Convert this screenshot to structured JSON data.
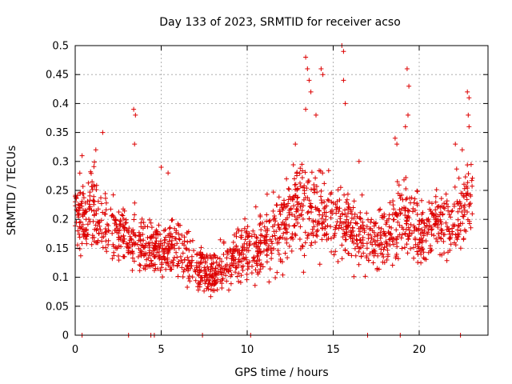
{
  "chart_data": {
    "type": "scatter",
    "title": "Day 133 of 2023, SRMTID for receiver acso",
    "xlabel": "GPS time / hours",
    "ylabel": "SRMTID / TECUs",
    "xlim": [
      0,
      24
    ],
    "ylim": [
      0,
      0.5
    ],
    "x_ticks": [
      0,
      5,
      10,
      15,
      20
    ],
    "x_tick_labels": [
      "0",
      "5",
      "10",
      "15",
      "20"
    ],
    "y_ticks": [
      0,
      0.05,
      0.1,
      0.15,
      0.2,
      0.25,
      0.3,
      0.35,
      0.4,
      0.45,
      0.5
    ],
    "y_tick_labels": [
      "0",
      "0.05",
      "0.1",
      "0.15",
      "0.2",
      "0.25",
      "0.3",
      "0.35",
      "0.4",
      "0.45",
      "0.5"
    ],
    "grid": true,
    "marker": "+",
    "color": "#dd0000",
    "envelope_hours": [
      0,
      1,
      2,
      3,
      4,
      5,
      6,
      7,
      8,
      9,
      10,
      11,
      12,
      13,
      14,
      15,
      16,
      17,
      18,
      19,
      20,
      21,
      22,
      23
    ],
    "envelope_low": [
      0.13,
      0.11,
      0.1,
      0.09,
      0.08,
      0.08,
      0.07,
      0.06,
      0.04,
      0.06,
      0.07,
      0.07,
      0.09,
      0.1,
      0.1,
      0.12,
      0.1,
      0.08,
      0.09,
      0.1,
      0.1,
      0.11,
      0.1,
      0.13
    ],
    "envelope_high": [
      0.28,
      0.32,
      0.26,
      0.24,
      0.22,
      0.22,
      0.22,
      0.18,
      0.16,
      0.2,
      0.24,
      0.24,
      0.28,
      0.34,
      0.32,
      0.3,
      0.28,
      0.24,
      0.26,
      0.3,
      0.26,
      0.26,
      0.3,
      0.34
    ],
    "spikes": [
      {
        "x": 0.4,
        "y": 0.31
      },
      {
        "x": 1.2,
        "y": 0.32
      },
      {
        "x": 1.6,
        "y": 0.35
      },
      {
        "x": 3.4,
        "y": 0.39
      },
      {
        "x": 3.5,
        "y": 0.38
      },
      {
        "x": 3.45,
        "y": 0.33
      },
      {
        "x": 5.0,
        "y": 0.29
      },
      {
        "x": 5.4,
        "y": 0.28
      },
      {
        "x": 12.8,
        "y": 0.33
      },
      {
        "x": 13.4,
        "y": 0.48
      },
      {
        "x": 13.5,
        "y": 0.46
      },
      {
        "x": 13.6,
        "y": 0.44
      },
      {
        "x": 13.7,
        "y": 0.42
      },
      {
        "x": 13.4,
        "y": 0.39
      },
      {
        "x": 14.3,
        "y": 0.46
      },
      {
        "x": 14.4,
        "y": 0.45
      },
      {
        "x": 14.0,
        "y": 0.38
      },
      {
        "x": 15.5,
        "y": 0.5
      },
      {
        "x": 15.6,
        "y": 0.49
      },
      {
        "x": 15.6,
        "y": 0.44
      },
      {
        "x": 15.7,
        "y": 0.4
      },
      {
        "x": 16.5,
        "y": 0.3
      },
      {
        "x": 19.3,
        "y": 0.46
      },
      {
        "x": 19.4,
        "y": 0.43
      },
      {
        "x": 19.35,
        "y": 0.38
      },
      {
        "x": 18.6,
        "y": 0.34
      },
      {
        "x": 18.7,
        "y": 0.33
      },
      {
        "x": 19.2,
        "y": 0.36
      },
      {
        "x": 22.1,
        "y": 0.33
      },
      {
        "x": 22.5,
        "y": 0.32
      },
      {
        "x": 22.8,
        "y": 0.42
      },
      {
        "x": 22.9,
        "y": 0.41
      },
      {
        "x": 22.85,
        "y": 0.38
      },
      {
        "x": 22.9,
        "y": 0.36
      }
    ],
    "zero_points_x": [
      0.4,
      3.1,
      4.4,
      4.6,
      7.4,
      10.2,
      17.0,
      18.9,
      22.4
    ]
  }
}
